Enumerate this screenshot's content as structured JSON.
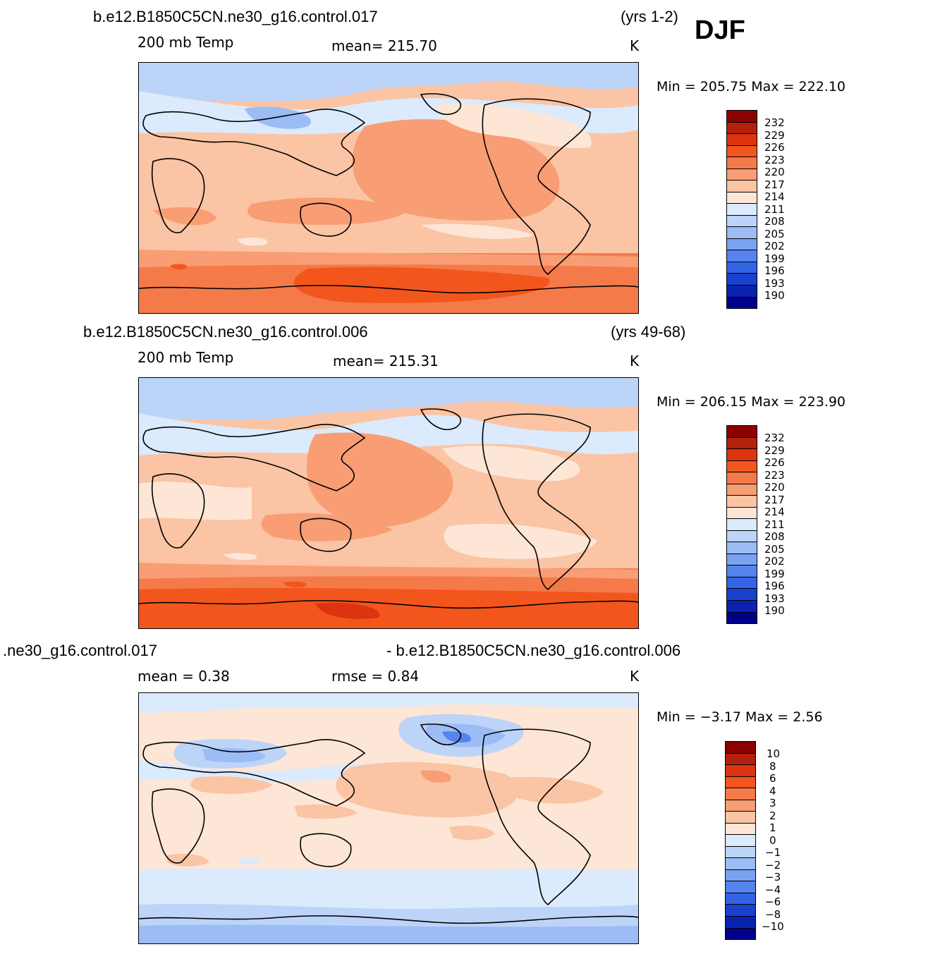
{
  "season": "DJF",
  "panels": [
    {
      "title": "b.e12.B1850C5CN.ne30_g16.control.017",
      "years": "(yrs 1-2)",
      "variable": "200 mb Temp",
      "stat_left": "mean= 215.70",
      "stat_right": "",
      "units": "K",
      "minmax": "Min =  205.75 Max =  222.10",
      "colorbar_labels": [
        "232",
        "229",
        "226",
        "223",
        "220",
        "217",
        "214",
        "211",
        "208",
        "205",
        "202",
        "199",
        "196",
        "193",
        "190"
      ]
    },
    {
      "title": "b.e12.B1850C5CN.ne30_g16.control.006",
      "years": "(yrs 49-68)",
      "variable": "200 mb Temp",
      "stat_left": "mean= 215.31",
      "stat_right": "",
      "units": "K",
      "minmax": "Min =  206.15 Max =  223.90",
      "colorbar_labels": [
        "232",
        "229",
        "226",
        "223",
        "220",
        "217",
        "214",
        "211",
        "208",
        "205",
        "202",
        "199",
        "196",
        "193",
        "190"
      ]
    },
    {
      "title_left": ".ne30_g16.control.017",
      "title_right": "- b.e12.B1850C5CN.ne30_g16.control.006",
      "stat_left": "mean =    0.38",
      "stat_right": "rmse =    0.84",
      "units": "K",
      "minmax": "Min =  −3.17 Max =    2.56",
      "colorbar_labels": [
        "10",
        "8",
        "6",
        "4",
        "3",
        "2",
        "1",
        "0",
        "−1",
        "−2",
        "−3",
        "−4",
        "−6",
        "−8",
        "−10"
      ]
    }
  ],
  "colorbar_colors": [
    "#8b0000",
    "#b3200c",
    "#dc3410",
    "#f2561c",
    "#f57a4a",
    "#f99d74",
    "#fbc4a4",
    "#fde6d6",
    "#dbeafc",
    "#bcd4f8",
    "#9cbcf6",
    "#7aa2f2",
    "#5584ee",
    "#3464e6",
    "#1a40d0",
    "#0a22b0",
    "#00008b"
  ]
}
